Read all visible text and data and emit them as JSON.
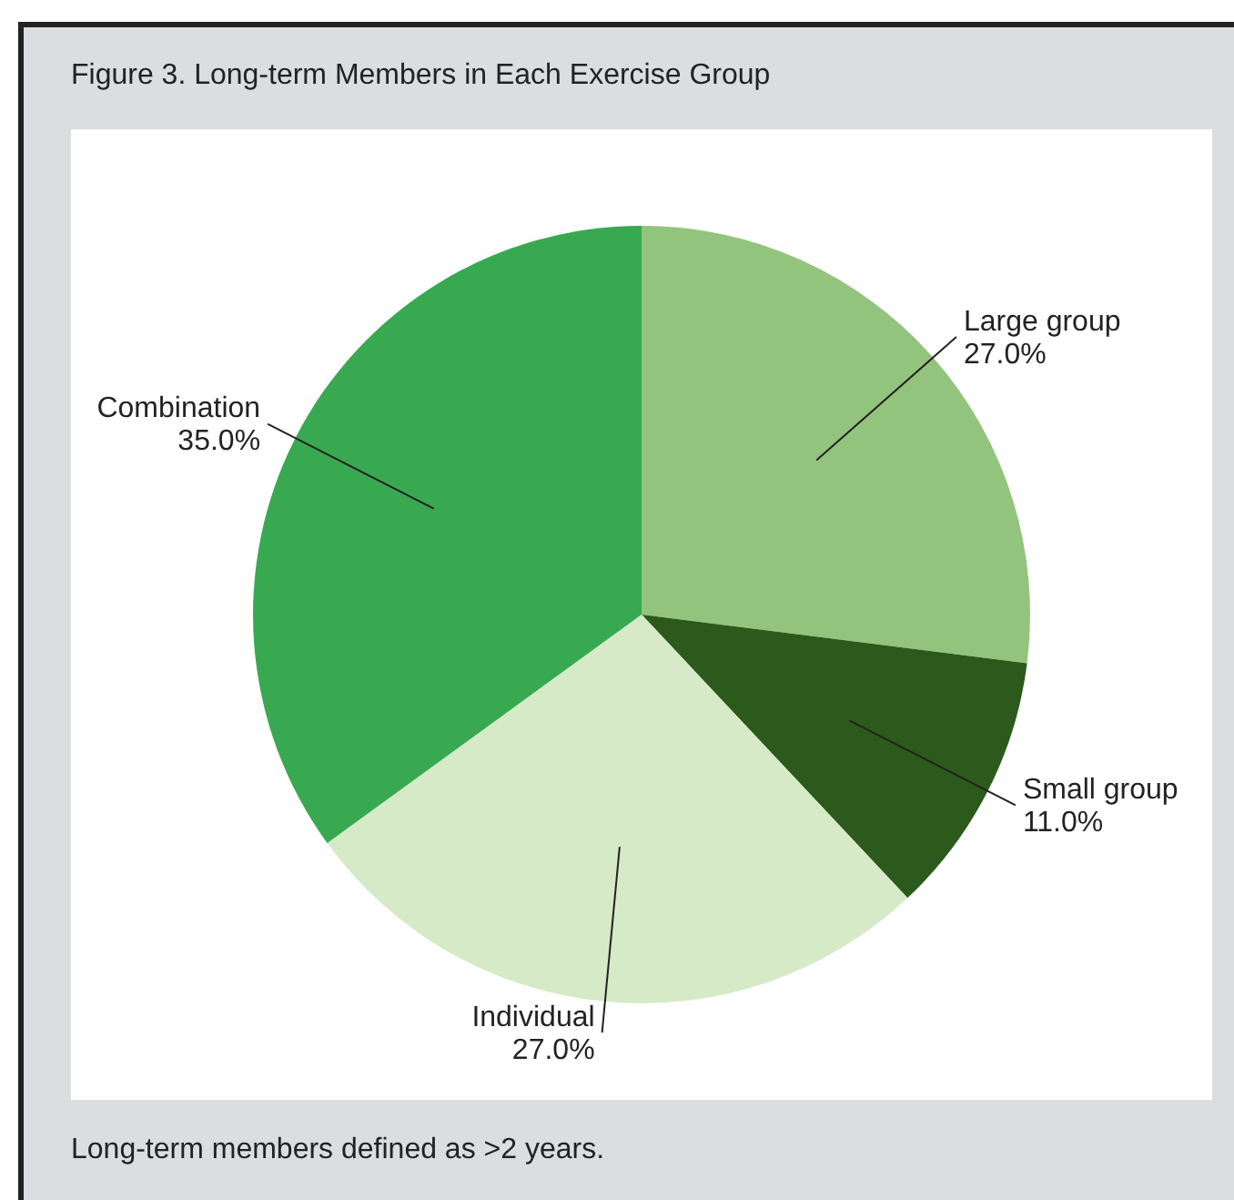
{
  "chart_data": {
    "type": "pie",
    "title": "Figure 3. Long-term Members in Each Exercise Group",
    "categories": [
      "Large group",
      "Small group",
      "Individual",
      "Combination"
    ],
    "values": [
      27.0,
      11.0,
      27.0,
      35.0
    ],
    "value_labels": [
      "27.0%",
      "11.0%",
      "27.0%",
      "35.0%"
    ],
    "colors": [
      "#93c47d",
      "#2b5a1c",
      "#d6eac7",
      "#39a951"
    ],
    "legend": false,
    "annotations": [
      "Long-term members defined as >2 years."
    ]
  }
}
